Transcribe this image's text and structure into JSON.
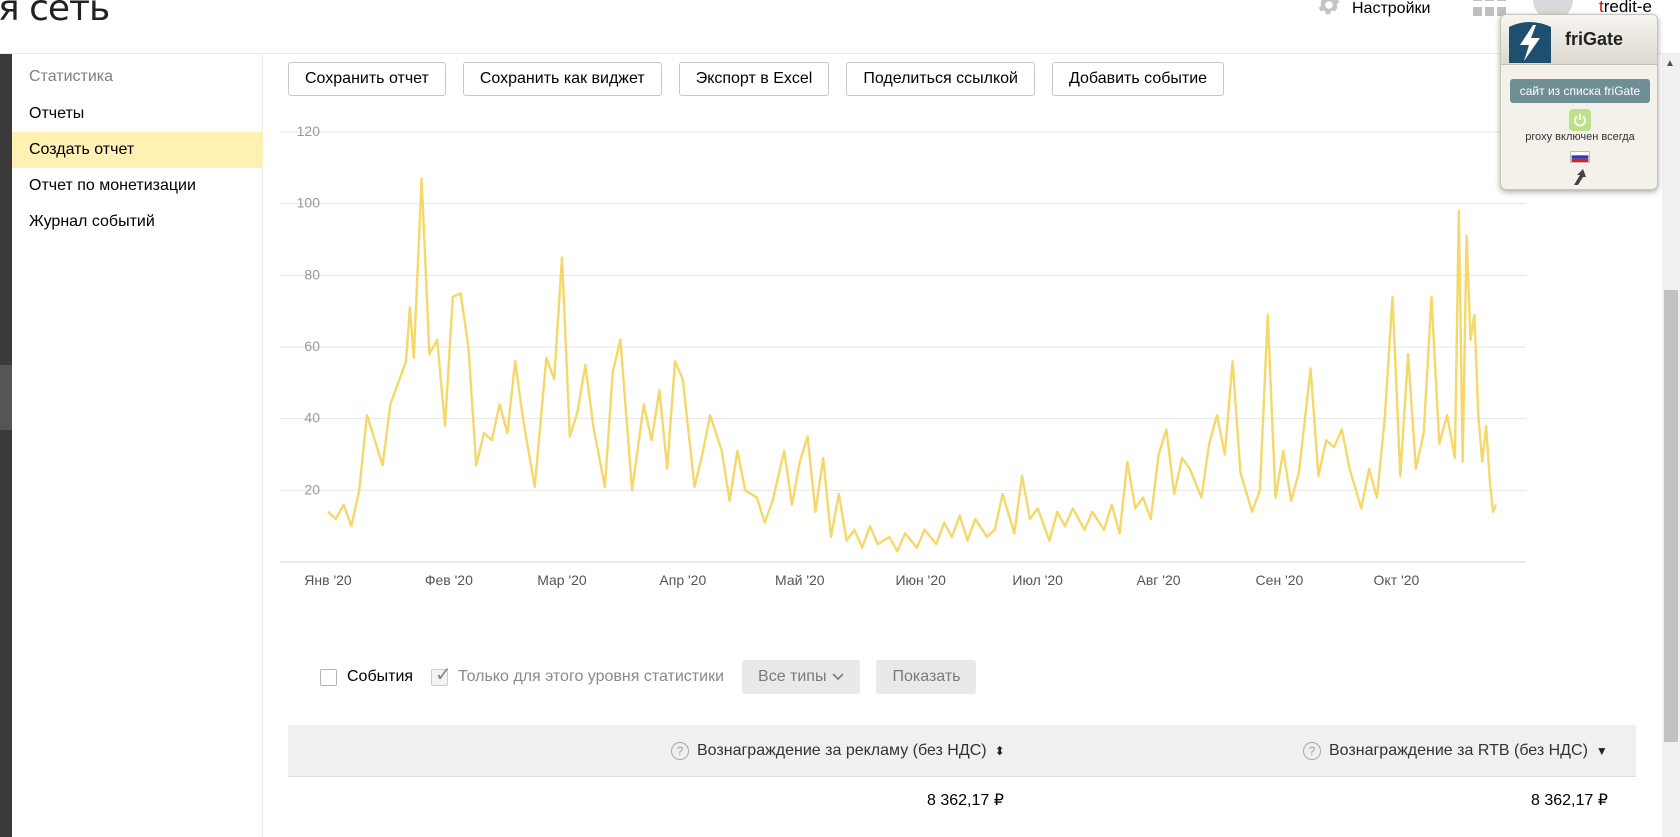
{
  "header": {
    "brand_fragment": "я сеть",
    "settings_label": "Настройки",
    "username_initial": "t",
    "username_rest": "redit-e"
  },
  "sidebar": {
    "heading": "Статистика",
    "items": [
      {
        "label": "Отчеты",
        "active": false
      },
      {
        "label": "Создать отчет",
        "active": true
      },
      {
        "label": "Отчет по монетизации",
        "active": false
      },
      {
        "label": "Журнал событий",
        "active": false
      }
    ]
  },
  "toolbar": {
    "buttons": [
      {
        "label": "Сохранить отчет"
      },
      {
        "label": "Сохранить как виджет"
      },
      {
        "label": "Экспорт в Excel"
      },
      {
        "label": "Поделиться ссылкой"
      },
      {
        "label": "Добавить событие"
      }
    ]
  },
  "chart_data": {
    "type": "line",
    "title": "",
    "xlabel": "",
    "ylabel": "",
    "ylim": [
      0,
      120
    ],
    "yticks": [
      20,
      40,
      60,
      80,
      100,
      120
    ],
    "grid": true,
    "color": "#f5d86a",
    "x_range": [
      "2020-01-01",
      "2020-10-25"
    ],
    "month_ticks": [
      {
        "date": "2020-01-01",
        "label": "Янв '20"
      },
      {
        "date": "2020-02-01",
        "label": "Фев '20"
      },
      {
        "date": "2020-03-01",
        "label": "Мар '20"
      },
      {
        "date": "2020-04-01",
        "label": "Апр '20"
      },
      {
        "date": "2020-05-01",
        "label": "Май '20"
      },
      {
        "date": "2020-06-01",
        "label": "Июн '20"
      },
      {
        "date": "2020-07-01",
        "label": "Июл '20"
      },
      {
        "date": "2020-08-01",
        "label": "Авг '20"
      },
      {
        "date": "2020-09-01",
        "label": "Сен '20"
      },
      {
        "date": "2020-10-01",
        "label": "Окт '20"
      }
    ],
    "series": [
      {
        "points": [
          [
            "2020-01-01",
            14
          ],
          [
            "2020-01-03",
            12
          ],
          [
            "2020-01-05",
            16
          ],
          [
            "2020-01-07",
            10
          ],
          [
            "2020-01-09",
            20
          ],
          [
            "2020-01-11",
            41
          ],
          [
            "2020-01-13",
            34
          ],
          [
            "2020-01-15",
            27
          ],
          [
            "2020-01-17",
            44
          ],
          [
            "2020-01-19",
            50
          ],
          [
            "2020-01-21",
            56
          ],
          [
            "2020-01-22",
            71
          ],
          [
            "2020-01-23",
            57
          ],
          [
            "2020-01-25",
            107
          ],
          [
            "2020-01-27",
            58
          ],
          [
            "2020-01-29",
            62
          ],
          [
            "2020-01-31",
            38
          ],
          [
            "2020-02-02",
            74
          ],
          [
            "2020-02-04",
            75
          ],
          [
            "2020-02-06",
            60
          ],
          [
            "2020-02-08",
            27
          ],
          [
            "2020-02-10",
            36
          ],
          [
            "2020-02-12",
            34
          ],
          [
            "2020-02-14",
            44
          ],
          [
            "2020-02-16",
            36
          ],
          [
            "2020-02-18",
            56
          ],
          [
            "2020-02-20",
            40
          ],
          [
            "2020-02-23",
            21
          ],
          [
            "2020-02-26",
            57
          ],
          [
            "2020-02-28",
            51
          ],
          [
            "2020-03-01",
            85
          ],
          [
            "2020-03-03",
            35
          ],
          [
            "2020-03-05",
            42
          ],
          [
            "2020-03-07",
            55
          ],
          [
            "2020-03-09",
            38
          ],
          [
            "2020-03-12",
            21
          ],
          [
            "2020-03-14",
            53
          ],
          [
            "2020-03-16",
            62
          ],
          [
            "2020-03-19",
            20
          ],
          [
            "2020-03-22",
            44
          ],
          [
            "2020-03-24",
            34
          ],
          [
            "2020-03-26",
            48
          ],
          [
            "2020-03-28",
            26
          ],
          [
            "2020-03-30",
            56
          ],
          [
            "2020-04-01",
            51
          ],
          [
            "2020-04-04",
            21
          ],
          [
            "2020-04-06",
            30
          ],
          [
            "2020-04-08",
            41
          ],
          [
            "2020-04-11",
            31
          ],
          [
            "2020-04-13",
            17
          ],
          [
            "2020-04-15",
            31
          ],
          [
            "2020-04-17",
            20
          ],
          [
            "2020-04-20",
            18
          ],
          [
            "2020-04-22",
            11
          ],
          [
            "2020-04-24",
            17
          ],
          [
            "2020-04-27",
            31
          ],
          [
            "2020-04-29",
            16
          ],
          [
            "2020-05-01",
            28
          ],
          [
            "2020-05-03",
            35
          ],
          [
            "2020-05-05",
            14
          ],
          [
            "2020-05-07",
            29
          ],
          [
            "2020-05-09",
            7
          ],
          [
            "2020-05-11",
            19
          ],
          [
            "2020-05-13",
            6
          ],
          [
            "2020-05-15",
            9
          ],
          [
            "2020-05-17",
            4
          ],
          [
            "2020-05-19",
            10
          ],
          [
            "2020-05-21",
            5
          ],
          [
            "2020-05-24",
            7
          ],
          [
            "2020-05-26",
            3
          ],
          [
            "2020-05-28",
            8
          ],
          [
            "2020-05-31",
            4
          ],
          [
            "2020-06-02",
            9
          ],
          [
            "2020-06-05",
            5
          ],
          [
            "2020-06-07",
            11
          ],
          [
            "2020-06-09",
            7
          ],
          [
            "2020-06-11",
            13
          ],
          [
            "2020-06-13",
            6
          ],
          [
            "2020-06-15",
            12
          ],
          [
            "2020-06-18",
            7
          ],
          [
            "2020-06-20",
            9
          ],
          [
            "2020-06-22",
            19
          ],
          [
            "2020-06-25",
            8
          ],
          [
            "2020-06-27",
            24
          ],
          [
            "2020-06-29",
            12
          ],
          [
            "2020-07-01",
            15
          ],
          [
            "2020-07-04",
            6
          ],
          [
            "2020-07-06",
            14
          ],
          [
            "2020-07-08",
            10
          ],
          [
            "2020-07-10",
            15
          ],
          [
            "2020-07-13",
            9
          ],
          [
            "2020-07-15",
            14
          ],
          [
            "2020-07-18",
            9
          ],
          [
            "2020-07-20",
            16
          ],
          [
            "2020-07-22",
            8
          ],
          [
            "2020-07-24",
            28
          ],
          [
            "2020-07-26",
            15
          ],
          [
            "2020-07-28",
            18
          ],
          [
            "2020-07-30",
            12
          ],
          [
            "2020-08-01",
            30
          ],
          [
            "2020-08-03",
            37
          ],
          [
            "2020-08-05",
            19
          ],
          [
            "2020-08-07",
            29
          ],
          [
            "2020-08-09",
            26
          ],
          [
            "2020-08-12",
            18
          ],
          [
            "2020-08-14",
            33
          ],
          [
            "2020-08-16",
            41
          ],
          [
            "2020-08-18",
            30
          ],
          [
            "2020-08-20",
            56
          ],
          [
            "2020-08-22",
            25
          ],
          [
            "2020-08-25",
            14
          ],
          [
            "2020-08-27",
            20
          ],
          [
            "2020-08-29",
            69
          ],
          [
            "2020-08-31",
            18
          ],
          [
            "2020-09-02",
            31
          ],
          [
            "2020-09-04",
            17
          ],
          [
            "2020-09-06",
            25
          ],
          [
            "2020-09-09",
            54
          ],
          [
            "2020-09-11",
            24
          ],
          [
            "2020-09-13",
            34
          ],
          [
            "2020-09-15",
            32
          ],
          [
            "2020-09-17",
            37
          ],
          [
            "2020-09-19",
            26
          ],
          [
            "2020-09-22",
            15
          ],
          [
            "2020-09-24",
            26
          ],
          [
            "2020-09-26",
            18
          ],
          [
            "2020-09-28",
            40
          ],
          [
            "2020-09-30",
            74
          ],
          [
            "2020-10-02",
            24
          ],
          [
            "2020-10-04",
            58
          ],
          [
            "2020-10-06",
            26
          ],
          [
            "2020-10-08",
            36
          ],
          [
            "2020-10-10",
            74
          ],
          [
            "2020-10-12",
            33
          ],
          [
            "2020-10-14",
            41
          ],
          [
            "2020-10-16",
            29
          ],
          [
            "2020-10-17",
            98
          ],
          [
            "2020-10-18",
            28
          ],
          [
            "2020-10-19",
            91
          ],
          [
            "2020-10-20",
            62
          ],
          [
            "2020-10-21",
            69
          ],
          [
            "2020-10-22",
            41
          ],
          [
            "2020-10-23",
            28
          ],
          [
            "2020-10-24",
            38
          ],
          [
            "2020-10-25",
            22
          ],
          [
            "2020-10-25",
            14
          ],
          [
            "2020-10-25",
            16
          ]
        ]
      }
    ]
  },
  "filters": {
    "events_label": "События",
    "events_checked": false,
    "level_only_label": "Только для этого уровня статистики",
    "level_only_checked": true,
    "types_label": "Все типы",
    "show_label": "Показать"
  },
  "table": {
    "col1_header": "Вознаграждение за рекламу (без НДС)",
    "col2_header": "Вознаграждение за RTB (без НДС)",
    "col1_value": "8 362,17 ₽",
    "col2_value": "8 362,17 ₽"
  },
  "frigate": {
    "title": "friGate",
    "site_label": "сайт из списка friGate",
    "status": "proxy включен всегда"
  }
}
